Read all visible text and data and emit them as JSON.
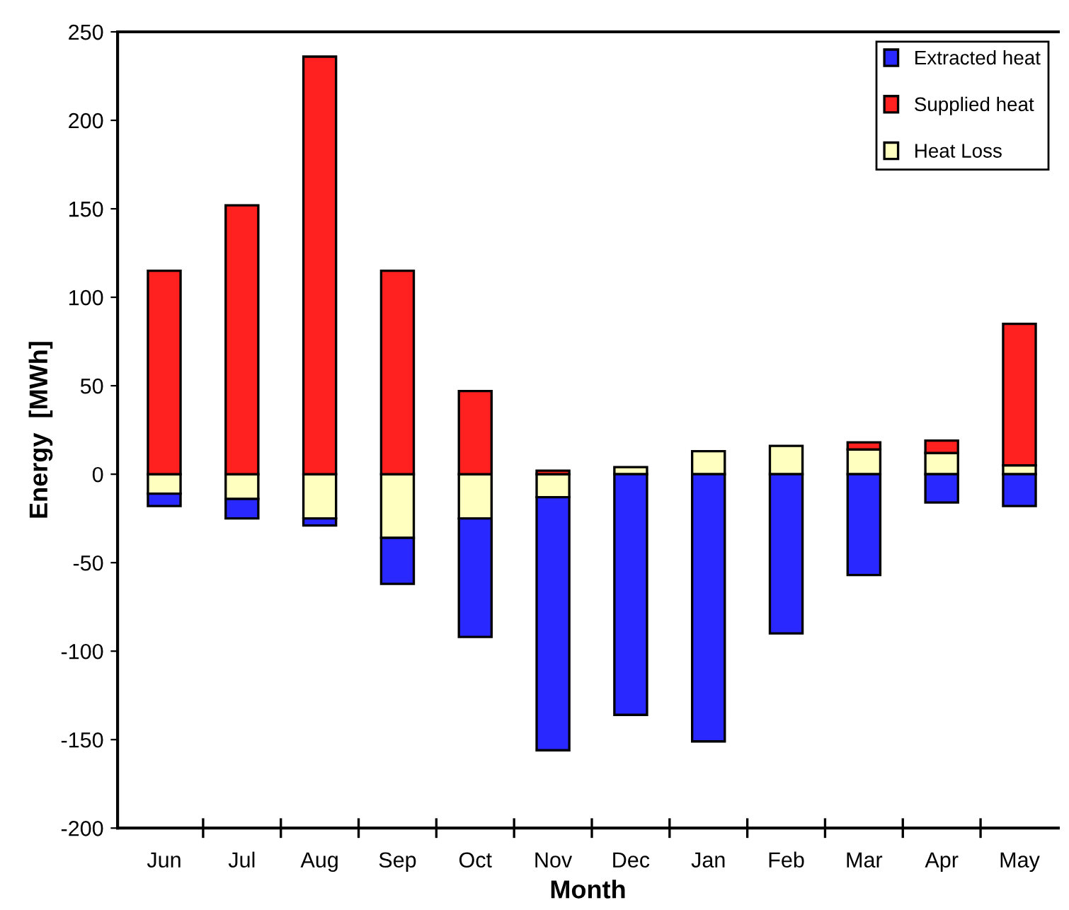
{
  "chart_data": {
    "type": "bar",
    "stacked": true,
    "xlabel": "Month",
    "ylabel": "Energy  [MWh]",
    "categories": [
      "Jun",
      "Jul",
      "Aug",
      "Sep",
      "Oct",
      "Nov",
      "Dec",
      "Jan",
      "Feb",
      "Mar",
      "Apr",
      "May"
    ],
    "series": [
      {
        "name": "Heat Loss",
        "color": "#ffffc0",
        "values": [
          -11,
          -14,
          -25,
          -36,
          -25,
          -13,
          4,
          13,
          16,
          14,
          12,
          5
        ]
      },
      {
        "name": "Supplied heat",
        "color": "#ff2020",
        "values": [
          115,
          152,
          236,
          115,
          47,
          2,
          null,
          null,
          null,
          4,
          7,
          80
        ]
      },
      {
        "name": "Extracted heat",
        "color": "#2828ff",
        "values": [
          -7,
          -11,
          -4,
          -26,
          -67,
          -143,
          -136,
          -151,
          -90,
          -57,
          -16,
          -18
        ]
      }
    ],
    "ylim": [
      -200,
      250
    ],
    "yticks": [
      -200,
      -150,
      -100,
      -50,
      0,
      50,
      100,
      150,
      200,
      250
    ],
    "grid": false,
    "legend": "top right"
  }
}
